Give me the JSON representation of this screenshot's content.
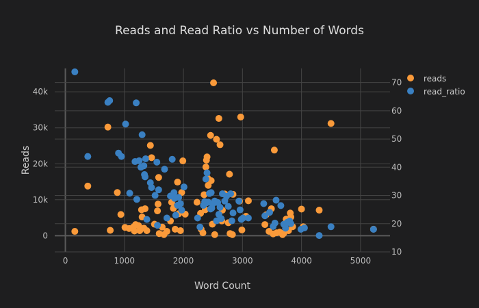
{
  "chart_data": {
    "type": "scatter",
    "title": "Reads and Read Ratio vs Number of Words",
    "xlabel": "Word Count",
    "ylabel": "Reads",
    "y2label": "",
    "xlim": [
      -180,
      5500
    ],
    "ylim": [
      -4500,
      46500
    ],
    "y2lim": [
      10,
      75
    ],
    "xticks": [
      0,
      1000,
      2000,
      3000,
      4000,
      5000
    ],
    "yticks": [
      0,
      10000,
      20000,
      30000,
      40000
    ],
    "ytick_labels": [
      "0",
      "10k",
      "20k",
      "30k",
      "40k"
    ],
    "y2ticks": [
      10,
      20,
      30,
      40,
      50,
      60,
      70
    ],
    "y2tick_labels": [
      "10",
      "20",
      "30",
      "40",
      "50",
      "60",
      "70"
    ],
    "legend_position": "top-right",
    "series": [
      {
        "name": "reads",
        "axis": "y",
        "color": "#fa9a3a",
        "points": [
          [
            160,
            1200
          ],
          [
            380,
            13800
          ],
          [
            720,
            30200
          ],
          [
            760,
            1500
          ],
          [
            880,
            12000
          ],
          [
            940,
            5900
          ],
          [
            1010,
            2300
          ],
          [
            1080,
            2000
          ],
          [
            1150,
            2400
          ],
          [
            1170,
            1300
          ],
          [
            1190,
            3100
          ],
          [
            1240,
            2800
          ],
          [
            1260,
            1400
          ],
          [
            1290,
            7200
          ],
          [
            1300,
            5200
          ],
          [
            1330,
            2100
          ],
          [
            1350,
            7500
          ],
          [
            1380,
            1400
          ],
          [
            1440,
            25100
          ],
          [
            1460,
            21700
          ],
          [
            1510,
            3200
          ],
          [
            1560,
            6900
          ],
          [
            1570,
            8800
          ],
          [
            1580,
            16200
          ],
          [
            1590,
            600
          ],
          [
            1640,
            2400
          ],
          [
            1670,
            300
          ],
          [
            1720,
            1200
          ],
          [
            1780,
            4100
          ],
          [
            1800,
            9300
          ],
          [
            1830,
            7600
          ],
          [
            1860,
            1800
          ],
          [
            1900,
            14900
          ],
          [
            1920,
            6100
          ],
          [
            1950,
            1400
          ],
          [
            1970,
            12000
          ],
          [
            1990,
            20800
          ],
          [
            2030,
            6000
          ],
          [
            2230,
            9300
          ],
          [
            2290,
            6200
          ],
          [
            2300,
            1800
          ],
          [
            2330,
            800
          ],
          [
            2350,
            11400
          ],
          [
            2370,
            7200
          ],
          [
            2380,
            19100
          ],
          [
            2390,
            21000
          ],
          [
            2400,
            21900
          ],
          [
            2410,
            16000
          ],
          [
            2420,
            14000
          ],
          [
            2460,
            27900
          ],
          [
            2470,
            15300
          ],
          [
            2490,
            3200
          ],
          [
            2510,
            42500
          ],
          [
            2530,
            300
          ],
          [
            2560,
            26800
          ],
          [
            2600,
            32600
          ],
          [
            2620,
            25300
          ],
          [
            2650,
            4100
          ],
          [
            2660,
            7100
          ],
          [
            2700,
            11600
          ],
          [
            2760,
            3600
          ],
          [
            2780,
            17100
          ],
          [
            2790,
            600
          ],
          [
            2830,
            300
          ],
          [
            2840,
            11500
          ],
          [
            2950,
            9600
          ],
          [
            2970,
            33000
          ],
          [
            2990,
            1600
          ],
          [
            3060,
            5400
          ],
          [
            3100,
            9700
          ],
          [
            3380,
            3100
          ],
          [
            3400,
            5800
          ],
          [
            3450,
            1200
          ],
          [
            3490,
            7500
          ],
          [
            3520,
            500
          ],
          [
            3540,
            23800
          ],
          [
            3580,
            800
          ],
          [
            3630,
            1000
          ],
          [
            3680,
            300
          ],
          [
            3700,
            700
          ],
          [
            3730,
            2100
          ],
          [
            3740,
            4600
          ],
          [
            3780,
            1400
          ],
          [
            3810,
            6300
          ],
          [
            3820,
            5200
          ],
          [
            3850,
            2500
          ],
          [
            4000,
            7400
          ],
          [
            4030,
            2500
          ],
          [
            4300,
            7100
          ],
          [
            4500,
            31200
          ],
          [
            5220,
            1800
          ]
        ]
      },
      {
        "name": "read_ratio",
        "axis": "y2",
        "color": "#3a80c2",
        "points": [
          [
            160,
            73.8
          ],
          [
            380,
            43.8
          ],
          [
            720,
            63.0
          ],
          [
            750,
            63.6
          ],
          [
            900,
            45.0
          ],
          [
            950,
            43.8
          ],
          [
            1020,
            55.3
          ],
          [
            1090,
            30.8
          ],
          [
            1180,
            42.0
          ],
          [
            1200,
            62.8
          ],
          [
            1210,
            28.6
          ],
          [
            1250,
            42.3
          ],
          [
            1280,
            40.0
          ],
          [
            1300,
            51.5
          ],
          [
            1330,
            40.5
          ],
          [
            1340,
            37.4
          ],
          [
            1350,
            36.6
          ],
          [
            1360,
            43.0
          ],
          [
            1380,
            21.5
          ],
          [
            1440,
            34.5
          ],
          [
            1460,
            32.8
          ],
          [
            1520,
            30.0
          ],
          [
            1550,
            41.8
          ],
          [
            1560,
            19.4
          ],
          [
            1580,
            32.0
          ],
          [
            1680,
            39.3
          ],
          [
            1720,
            22.0
          ],
          [
            1780,
            29.8
          ],
          [
            1810,
            42.8
          ],
          [
            1840,
            31.0
          ],
          [
            1850,
            29.0
          ],
          [
            1870,
            23.0
          ],
          [
            1900,
            26.5
          ],
          [
            1920,
            29.3
          ],
          [
            1950,
            27.1
          ],
          [
            1970,
            24.8
          ],
          [
            2010,
            33.0
          ],
          [
            2240,
            22.0
          ],
          [
            2280,
            18.8
          ],
          [
            2340,
            26.5
          ],
          [
            2360,
            27.8
          ],
          [
            2380,
            35.8
          ],
          [
            2390,
            27.4
          ],
          [
            2400,
            38.0
          ],
          [
            2420,
            27.6
          ],
          [
            2440,
            30.7
          ],
          [
            2460,
            25.2
          ],
          [
            2470,
            31.0
          ],
          [
            2480,
            25.5
          ],
          [
            2500,
            27.1
          ],
          [
            2530,
            28.0
          ],
          [
            2560,
            21.0
          ],
          [
            2580,
            27.5
          ],
          [
            2600,
            23.3
          ],
          [
            2620,
            25.8
          ],
          [
            2640,
            21.8
          ],
          [
            2660,
            30.6
          ],
          [
            2700,
            28.0
          ],
          [
            2730,
            29.7
          ],
          [
            2760,
            26.1
          ],
          [
            2800,
            30.6
          ],
          [
            2820,
            21.0
          ],
          [
            2840,
            23.8
          ],
          [
            2940,
            28.0
          ],
          [
            2960,
            24.9
          ],
          [
            2980,
            21.5
          ],
          [
            3010,
            22.0
          ],
          [
            3100,
            22.0
          ],
          [
            3360,
            27.1
          ],
          [
            3380,
            22.8
          ],
          [
            3460,
            24.0
          ],
          [
            3520,
            19.0
          ],
          [
            3550,
            20.2
          ],
          [
            3570,
            28.3
          ],
          [
            3650,
            26.4
          ],
          [
            3700,
            19.8
          ],
          [
            3730,
            18.4
          ],
          [
            3760,
            20.5
          ],
          [
            3800,
            20.9
          ],
          [
            3820,
            20.0
          ],
          [
            3990,
            18.0
          ],
          [
            4050,
            18.5
          ],
          [
            4300,
            15.8
          ],
          [
            4500,
            18.9
          ],
          [
            5220,
            18.0
          ]
        ]
      }
    ]
  }
}
